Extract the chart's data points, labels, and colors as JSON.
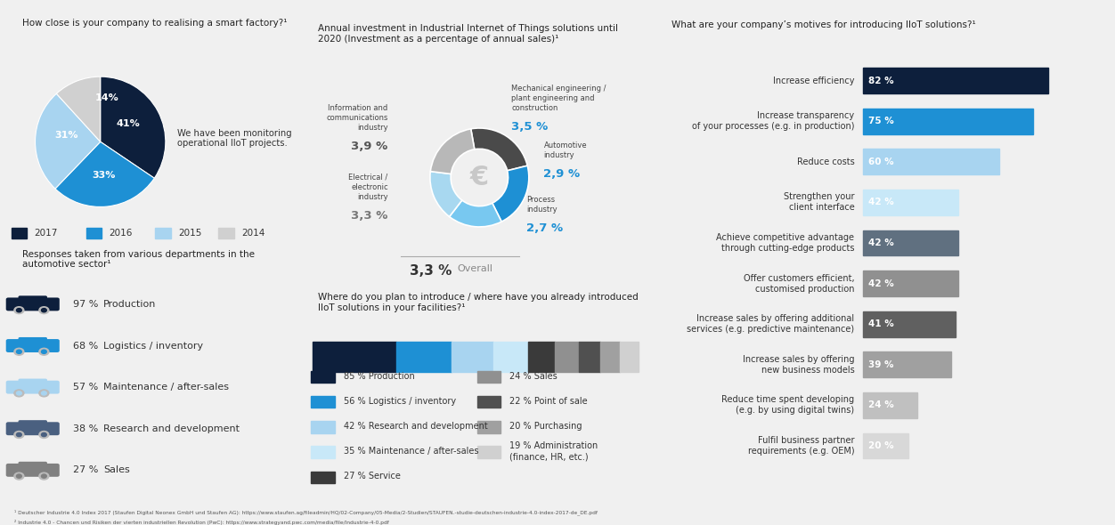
{
  "bg_color": "#f0f0f0",
  "panel_color": "#ffffff",
  "title1": "How close is your company to realising a smart factory?¹",
  "pie_values": [
    41,
    33,
    31,
    14
  ],
  "pie_labels": [
    "41%",
    "33%",
    "31%",
    "14%"
  ],
  "pie_colors": [
    "#0d1f3c",
    "#1e90d4",
    "#a8d4f0",
    "#d0d0d0"
  ],
  "pie_legend": [
    "2017",
    "2016",
    "2015",
    "2014"
  ],
  "pie_annotation": "We have been monitoring\noperational IIoT projects.",
  "dept_title": "Responses taken from various departments in the\nautomotive sector¹",
  "dept_values": [
    97,
    68,
    57,
    38,
    27
  ],
  "dept_labels": [
    "Production",
    "Logistics / inventory",
    "Maintenance / after-sales",
    "Research and development",
    "Sales"
  ],
  "dept_car_colors": [
    "#0d1f3c",
    "#1e90d4",
    "#a8d4f0",
    "#4a6080",
    "#808080"
  ],
  "title2": "Annual investment in Industrial Internet of Things solutions until\n2020 (Investment as a percentage of annual sales)¹",
  "donut_values": [
    3.9,
    3.5,
    2.9,
    2.7,
    3.3
  ],
  "donut_pct_labels": [
    "3,9 %",
    "3,5 %",
    "2,9 %",
    "2,7 %",
    "3,3 %"
  ],
  "donut_segment_labels": [
    "Information and\ncommunications\nindustry",
    "Mechanical engineering /\nplant engineering and\nconstruction",
    "Automotive\nindustry",
    "Process\nindustry",
    "Electrical /\nelectronic\nindustry"
  ],
  "donut_colors": [
    "#4a4a4a",
    "#1e90d4",
    "#78c8f0",
    "#a8d8f0",
    "#b8b8b8"
  ],
  "donut_overall": "3,3 %",
  "title3": "Where do you plan to introduce / where have you already introduced\nIIoT solutions in your facilities?¹",
  "bar2_values": [
    85,
    56,
    42,
    35,
    27,
    24,
    22,
    20,
    19
  ],
  "bar2_labels": [
    "85 % Production",
    "56 % Logistics / inventory",
    "42 % Research and development",
    "35 % Maintenance / after-sales",
    "27 % Service",
    "24 % Sales",
    "22 % Point of sale",
    "20 % Purchasing",
    "19 % Administration\n(finance, HR, etc.)"
  ],
  "bar2_colors": [
    "#0d1f3c",
    "#1e90d4",
    "#a8d4f0",
    "#c8e8f8",
    "#3a3a3a",
    "#909090",
    "#505050",
    "#a0a0a0",
    "#d0d0d0"
  ],
  "title4": "What are your company’s motives for introducing IIoT solutions?¹",
  "bar3_labels": [
    "Increase efficiency",
    "Increase transparency\nof your processes (e.g. in production)",
    "Reduce costs",
    "Strengthen your\nclient interface",
    "Achieve competitive advantage\nthrough cutting-edge products",
    "Offer customers efficient,\ncustomised production",
    "Increase sales by offering additional\nservices (e.g. predictive maintenance)",
    "Increase sales by offering\nnew business models",
    "Reduce time spent developing\n(e.g. by using digital twins)",
    "Fulfil business partner\nrequirements (e.g. OEM)"
  ],
  "bar3_values": [
    82,
    75,
    60,
    42,
    42,
    42,
    41,
    39,
    24,
    20
  ],
  "bar3_colors": [
    "#0d1f3c",
    "#1e90d4",
    "#a8d4f0",
    "#c8e8f8",
    "#607080",
    "#909090",
    "#606060",
    "#a0a0a0",
    "#c0c0c0",
    "#d8d8d8"
  ],
  "bar3_text_colors": [
    "white",
    "white",
    "white",
    "white",
    "white",
    "white",
    "white",
    "white",
    "white",
    "white"
  ],
  "footnote1": "¹ Deutscher Industrie 4.0 Index 2017 (Staufen Digital Neonex GmbH und Staufen AG): https://www.staufen.ag/fileadmin/HQ/02-Company/05-Media/2-Studien/STAUFEN.-studie-deutschen-industrie-4.0-index-2017-de_DE.pdf",
  "footnote2": "² Industrie 4.0 - Chancen und Risiken der vierten industriellen Revolution (PwC): https://www.strategyand.pwc.com/media/file/Industrie-4-0.pdf"
}
